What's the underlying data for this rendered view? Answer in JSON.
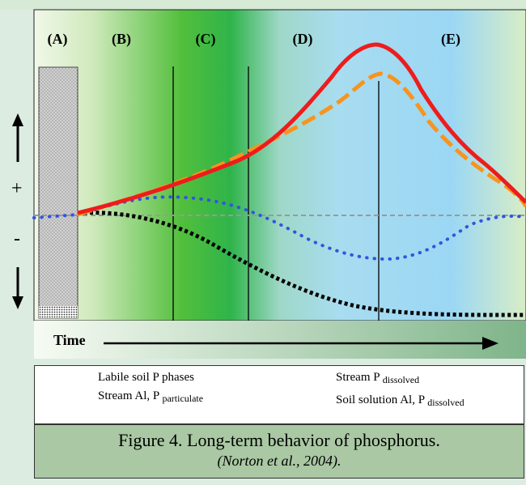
{
  "phases": [
    "(A)",
    "(B)",
    "(C)",
    "(D)",
    "(E)"
  ],
  "axis": {
    "up_arrow": "↑",
    "plus": "+",
    "minus": "-",
    "down_arrow": "↓",
    "time_label": "Time"
  },
  "legend": [
    {
      "label": "Labile soil P phases",
      "sub": "",
      "color": "#000000",
      "style": "dotted-square"
    },
    {
      "label": "Stream P ",
      "sub": "dissolved",
      "color": "#3355dd",
      "style": "dotted-round"
    },
    {
      "label": "Stream Al, P ",
      "sub": "particulate",
      "color": "#ee1c1c",
      "style": "solid"
    },
    {
      "label": "Soil solution Al, P ",
      "sub": "dissolved",
      "color": "#f7941d",
      "style": "dashed"
    }
  ],
  "caption": {
    "main": "Figure 4.  Long-term behavior of phosphorus.",
    "citation": "(Norton et al., 2004)."
  }
}
